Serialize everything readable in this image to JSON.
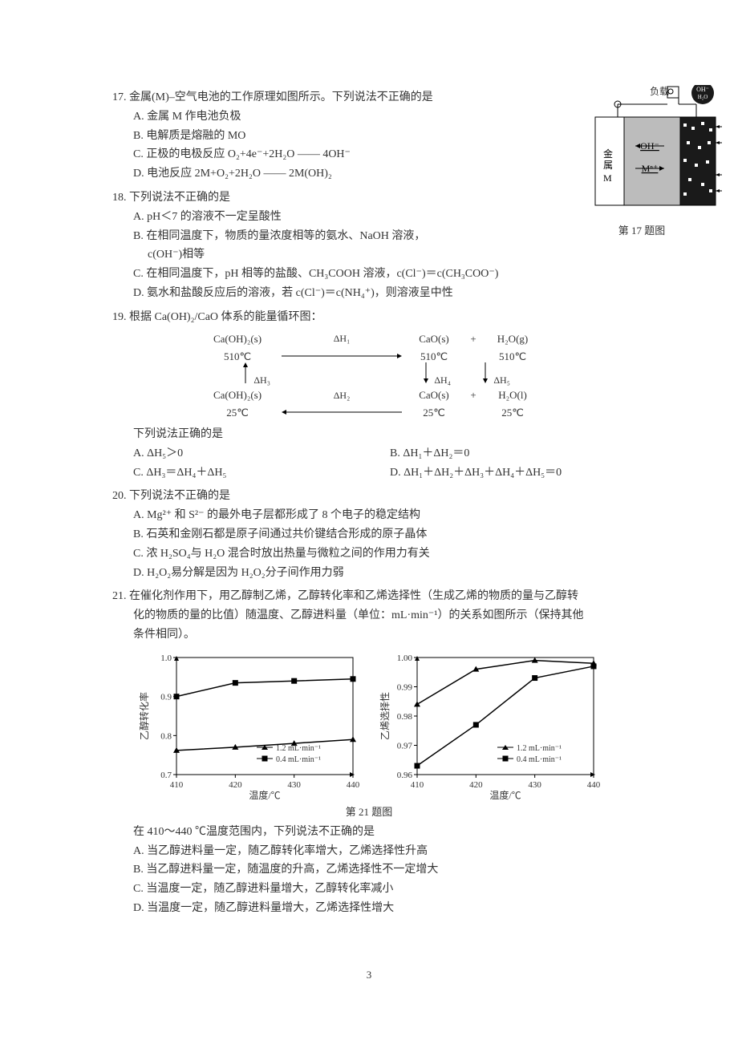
{
  "colors": {
    "text": "#333333",
    "bg": "#ffffff",
    "line": "#000000",
    "gray": "#bcbcbc",
    "dark": "#1a1a1a"
  },
  "page_number": "3",
  "q17": {
    "num": "17.",
    "stem": "金属(M)–空气电池的工作原理如图所示。下列说法不正确的是",
    "optA": "A. 金属 M 作电池负极",
    "optB": "B. 电解质是熔融的 MO",
    "optC": "C. 正极的电极反应 O₂+4e⁻+2H₂O —— 4OH⁻",
    "optD": "D. 电池反应 2M+O₂+2H₂O —— 2M(OH)₂",
    "fig": {
      "load_label": "负载",
      "left_label": "金属\nM",
      "ohminus": "OH⁻",
      "mnplus": "Mⁿ⁺",
      "air_label": "空气",
      "bubble1": "OH⁻",
      "bubble2": "H₂O",
      "caption": "第 17 题图"
    }
  },
  "q18": {
    "num": "18.",
    "stem": "下列说法不正确的是",
    "optA": "A. pH＜7 的溶液不一定呈酸性",
    "optB1": "B. 在相同温度下，物质的量浓度相等的氨水、NaOH 溶液，",
    "optB2": "c(OH⁻)相等",
    "optC": "C. 在相同温度下，pH 相等的盐酸、CH₃COOH 溶液，c(Cl⁻)＝c(CH₃COO⁻)",
    "optD": "D. 氨水和盐酸反应后的溶液，若 c(Cl⁻)＝c(NH₄⁺)，则溶液呈中性"
  },
  "q19": {
    "num": "19.",
    "stem": "根据 Ca(OH)₂/CaO 体系的能量循环图：",
    "cycle": {
      "topL1": "Ca(OH)₂(s)",
      "topL2": "510℃",
      "topR1": "CaO(s)",
      "topR2": "510℃",
      "topR3": "H₂O(g)",
      "topR4": "510℃",
      "botL1": "Ca(OH)₂(s)",
      "botL2": "25℃",
      "botR1": "CaO(s)",
      "botR2": "25℃",
      "botR3": "H₂O(l)",
      "botR4": "25℃",
      "dH1": "ΔH₁",
      "dH2": "ΔH₂",
      "dH3": "ΔH₃",
      "dH4": "ΔH₄",
      "dH5": "ΔH₅",
      "plus": "+"
    },
    "below": "下列说法正确的是",
    "optA": "A. ΔH₅＞0",
    "optB": "B. ΔH₁＋ΔH₂＝0",
    "optC": "C. ΔH₃＝ΔH₄＋ΔH₅",
    "optD": "D. ΔH₁＋ΔH₂＋ΔH₃＋ΔH₄＋ΔH₅＝0"
  },
  "q20": {
    "num": "20.",
    "stem": "下列说法不正确的是",
    "optA": "A. Mg²⁺ 和 S²⁻ 的最外电子层都形成了 8 个电子的稳定结构",
    "optB": "B. 石英和金刚石都是原子间通过共价键结合形成的原子晶体",
    "optC": "C. 浓 H₂SO₄与 H₂O 混合时放出热量与微粒之间的作用力有关",
    "optD": "D. H₂O₂易分解是因为 H₂O₂分子间作用力弱"
  },
  "q21": {
    "num": "21.",
    "stem1": "在催化剂作用下，用乙醇制乙烯，乙醇转化率和乙烯选择性（生成乙烯的物质的量与乙醇转",
    "stem2": "化的物质的量的比值）随温度、乙醇进料量（单位：mL·min⁻¹）的关系如图所示（保持其他",
    "stem3": "条件相同）。",
    "chart1": {
      "yaxis": "乙醇转化率",
      "xaxis": "温度/℃",
      "ymin": 0.7,
      "ymax": 1.0,
      "yticks": [
        0.7,
        0.8,
        0.9,
        1.0
      ],
      "xmin": 410,
      "xmax": 440,
      "xticks": [
        410,
        420,
        430,
        440
      ],
      "series": [
        {
          "name": "1.2 mL·min⁻¹",
          "marker": "triangle",
          "color": "#000000",
          "points": [
            [
              410,
              0.762
            ],
            [
              420,
              0.77
            ],
            [
              430,
              0.78
            ],
            [
              440,
              0.79
            ]
          ]
        },
        {
          "name": "0.4 mL·min⁻¹",
          "marker": "square",
          "color": "#000000",
          "points": [
            [
              410,
              0.9
            ],
            [
              420,
              0.935
            ],
            [
              430,
              0.94
            ],
            [
              440,
              0.945
            ]
          ]
        }
      ],
      "legend": [
        "1.2 mL·min⁻¹",
        "0.4 mL·min⁻¹"
      ]
    },
    "chart2": {
      "yaxis": "乙烯选择性",
      "xaxis": "温度/℃",
      "ymin": 0.96,
      "ymax": 1.0,
      "yticks": [
        0.96,
        0.97,
        0.98,
        0.99,
        1.0
      ],
      "xmin": 410,
      "xmax": 440,
      "xticks": [
        410,
        420,
        430,
        440
      ],
      "series": [
        {
          "name": "1.2 mL·min⁻¹",
          "marker": "triangle",
          "color": "#000000",
          "points": [
            [
              410,
              0.984
            ],
            [
              420,
              0.996
            ],
            [
              430,
              0.999
            ],
            [
              440,
              0.998
            ]
          ]
        },
        {
          "name": "0.4 mL·min⁻¹",
          "marker": "square",
          "color": "#000000",
          "points": [
            [
              410,
              0.963
            ],
            [
              420,
              0.977
            ],
            [
              430,
              0.993
            ],
            [
              440,
              0.997
            ]
          ]
        }
      ],
      "legend": [
        "1.2 mL·min⁻¹",
        "0.4 mL·min⁻¹"
      ]
    },
    "charts_caption": "第 21 题图",
    "below": "在 410～440 ℃温度范围内，下列说法不正确的是",
    "optA": "A. 当乙醇进料量一定，随乙醇转化率增大，乙烯选择性升高",
    "optB": "B. 当乙醇进料量一定，随温度的升高，乙烯选择性不一定增大",
    "optC": "C. 当温度一定，随乙醇进料量增大，乙醇转化率减小",
    "optD": "D. 当温度一定，随乙醇进料量增大，乙烯选择性增大"
  }
}
